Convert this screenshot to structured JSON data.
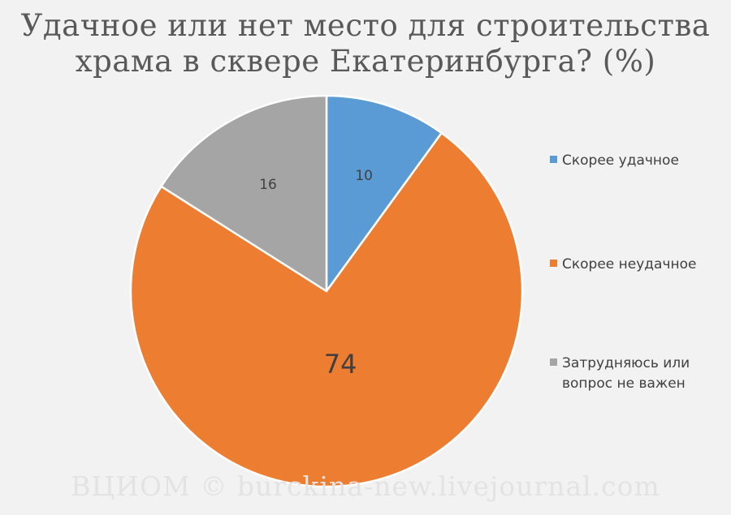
{
  "chart_data": {
    "type": "pie",
    "title_lines": [
      "Удачное или нет место для строительства",
      "храма в сквере Екатеринбурга? (%)"
    ],
    "unit": "%",
    "start_angle_deg": 0,
    "direction": "clockwise",
    "slices": [
      {
        "label": "Скорее удачное",
        "value": 10,
        "color": "#5b9bd5"
      },
      {
        "label": "Скорее неудачное",
        "value": 74,
        "color": "#ed7d31"
      },
      {
        "label": "Затрудняюсь или\nвопрос не важен",
        "value": 16,
        "color": "#a5a5a5"
      }
    ],
    "legend_position": "right"
  },
  "watermark": "ВЦИОМ © burckina-new.livejournal.com"
}
